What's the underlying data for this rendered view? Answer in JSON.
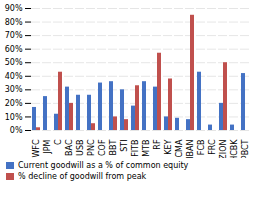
{
  "chart_data": {
    "type": "bar",
    "categories": [
      "WFC",
      "JPM",
      "C",
      "BAC",
      "USB",
      "PNC",
      "COF",
      "BBT",
      "STI",
      "FITB",
      "MTB",
      "RF",
      "KEY",
      "CMA",
      "HBAN",
      "FCB",
      "FRC",
      "ZION",
      "HCBK",
      "PBCT"
    ],
    "series": [
      {
        "name": "Current goodwill as a % of common equity",
        "color": "#4472C4",
        "values": [
          17,
          25,
          12,
          32,
          26,
          26,
          35,
          36,
          30,
          18,
          36,
          32,
          10,
          9,
          8,
          43,
          4,
          20,
          4,
          42
        ]
      },
      {
        "name": "% decline of goodwill from peak",
        "color": "#C0504D",
        "values": [
          2,
          0,
          43,
          20,
          0,
          5,
          0,
          10,
          8,
          33,
          0,
          57,
          38,
          0,
          85,
          0,
          0,
          50,
          0,
          0
        ]
      }
    ],
    "ylim": [
      0,
      90
    ],
    "yticks": [
      {
        "value": 0,
        "label": "0%"
      },
      {
        "value": 10,
        "label": "10%"
      },
      {
        "value": 20,
        "label": "20%"
      },
      {
        "value": 30,
        "label": "30%"
      },
      {
        "value": 40,
        "label": "40%"
      },
      {
        "value": 50,
        "label": "50%"
      },
      {
        "value": 60,
        "label": "60%"
      },
      {
        "value": 70,
        "label": "70%"
      },
      {
        "value": 80,
        "label": "80%"
      },
      {
        "value": 90,
        "label": "90%"
      }
    ],
    "grid": true,
    "legend": "bottom"
  }
}
